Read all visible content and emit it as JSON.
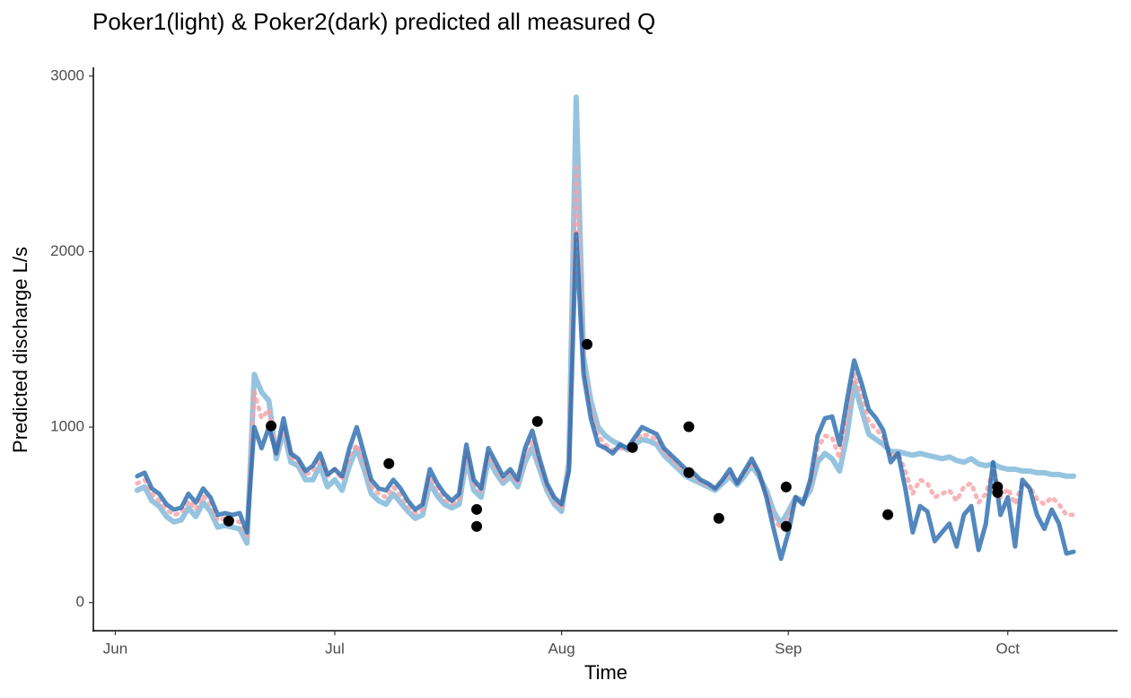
{
  "chart_data": {
    "type": "line",
    "title": "Poker1(light) & Poker2(dark) predicted all measured Q",
    "xlabel": "Time",
    "ylabel": "Predicted discharge L/s",
    "xlim": [
      -3,
      137
    ],
    "ylim": [
      -160,
      3050
    ],
    "xticks": [
      {
        "value": 0,
        "label": "Jun"
      },
      {
        "value": 30,
        "label": "Jul"
      },
      {
        "value": 61,
        "label": "Aug"
      },
      {
        "value": 92,
        "label": "Sep"
      },
      {
        "value": 122,
        "label": "Oct"
      }
    ],
    "yticks": [
      0,
      1000,
      2000,
      3000
    ],
    "grid": false,
    "x": [
      3,
      4,
      5,
      6,
      7,
      8,
      9,
      10,
      11,
      12,
      13,
      14,
      15,
      16,
      17,
      18,
      19,
      20,
      21,
      22,
      23,
      24,
      25,
      26,
      27,
      28,
      29,
      30,
      31,
      32,
      33,
      34,
      35,
      36,
      37,
      38,
      39,
      40,
      41,
      42,
      43,
      44,
      45,
      46,
      47,
      48,
      49,
      50,
      51,
      52,
      53,
      54,
      55,
      56,
      57,
      58,
      59,
      60,
      61,
      62,
      63,
      64,
      65,
      66,
      67,
      68,
      69,
      70,
      71,
      72,
      73,
      74,
      75,
      76,
      77,
      78,
      79,
      80,
      81,
      82,
      83,
      84,
      85,
      86,
      87,
      88,
      89,
      90,
      91,
      92,
      93,
      94,
      95,
      96,
      97,
      98,
      99,
      100,
      101,
      102,
      103,
      104,
      105,
      106,
      107,
      108,
      109,
      110,
      111,
      112,
      113,
      114,
      115,
      116,
      117,
      118,
      119,
      120,
      121,
      122,
      123,
      124,
      125,
      126,
      127,
      128,
      129,
      130,
      131
    ],
    "series": [
      {
        "color": "#8fc1de",
        "width": 6,
        "opacity": 0.95,
        "values": [
          640,
          660,
          580,
          550,
          490,
          460,
          470,
          540,
          490,
          570,
          520,
          430,
          440,
          430,
          420,
          340,
          1300,
          1200,
          1150,
          820,
          980,
          800,
          780,
          700,
          700,
          780,
          660,
          700,
          640,
          780,
          880,
          760,
          620,
          580,
          560,
          620,
          570,
          520,
          480,
          500,
          680,
          610,
          560,
          540,
          560,
          820,
          640,
          600,
          820,
          740,
          680,
          720,
          660,
          800,
          880,
          760,
          640,
          560,
          520,
          800,
          2880,
          1400,
          1150,
          1000,
          950,
          920,
          900,
          870,
          900,
          930,
          920,
          900,
          840,
          800,
          760,
          720,
          700,
          680,
          660,
          640,
          680,
          720,
          670,
          720,
          780,
          720,
          640,
          520,
          450,
          520,
          600,
          580,
          640,
          800,
          850,
          820,
          750,
          950,
          1250,
          1100,
          960,
          930,
          900,
          860,
          860,
          850,
          840,
          850,
          840,
          830,
          820,
          830,
          810,
          800,
          820,
          790,
          780,
          790,
          770,
          760,
          760,
          750,
          750,
          740,
          740,
          730,
          730,
          720,
          720
        ]
      },
      {
        "color": "#f4a3a6",
        "width": 5,
        "opacity": 0.8,
        "dash": true,
        "values": [
          680,
          700,
          620,
          580,
          530,
          500,
          510,
          580,
          530,
          610,
          560,
          470,
          480,
          470,
          460,
          380,
          1200,
          1050,
          1100,
          840,
          1000,
          830,
          800,
          730,
          750,
          820,
          720,
          760,
          700,
          830,
          900,
          800,
          660,
          620,
          600,
          660,
          610,
          550,
          510,
          530,
          720,
          650,
          590,
          560,
          590,
          860,
          680,
          630,
          850,
          770,
          700,
          740,
          680,
          840,
          930,
          790,
          660,
          580,
          540,
          780,
          2500,
          1350,
          1100,
          950,
          900,
          870,
          880,
          870,
          920,
          960,
          950,
          930,
          860,
          820,
          780,
          740,
          720,
          690,
          670,
          650,
          690,
          740,
          680,
          740,
          800,
          730,
          620,
          480,
          420,
          480,
          600,
          570,
          670,
          880,
          950,
          940,
          820,
          1050,
          1300,
          1180,
          1030,
          990,
          940,
          830,
          850,
          750,
          620,
          700,
          680,
          600,
          620,
          640,
          580,
          660,
          680,
          570,
          620,
          760,
          600,
          650,
          560,
          680,
          660,
          590,
          560,
          600,
          560,
          500,
          500
        ]
      },
      {
        "color": "#2166ac",
        "width": 5,
        "opacity": 0.78,
        "values": [
          720,
          740,
          650,
          620,
          560,
          530,
          540,
          620,
          570,
          650,
          600,
          500,
          510,
          500,
          510,
          400,
          1000,
          880,
          1000,
          850,
          1050,
          850,
          820,
          750,
          780,
          850,
          730,
          760,
          720,
          880,
          1000,
          850,
          700,
          650,
          640,
          700,
          650,
          580,
          530,
          560,
          760,
          680,
          620,
          580,
          620,
          900,
          700,
          650,
          880,
          800,
          720,
          760,
          700,
          880,
          980,
          820,
          680,
          600,
          560,
          750,
          2100,
          1300,
          1050,
          900,
          880,
          850,
          900,
          880,
          940,
          1000,
          980,
          960,
          880,
          840,
          800,
          760,
          740,
          700,
          680,
          650,
          700,
          760,
          680,
          750,
          820,
          740,
          600,
          420,
          250,
          400,
          600,
          560,
          700,
          950,
          1050,
          1060,
          900,
          1150,
          1380,
          1250,
          1100,
          1050,
          980,
          800,
          850,
          650,
          400,
          550,
          520,
          350,
          400,
          450,
          320,
          500,
          550,
          300,
          450,
          800,
          500,
          600,
          320,
          700,
          650,
          500,
          420,
          530,
          450,
          280,
          290
        ]
      },
      {
        "type": "scatter",
        "color": "#000000",
        "x": [
          15.5,
          21.3,
          37.4,
          49.4,
          49.4,
          57.7,
          64.5,
          70.7,
          78.4,
          78.4,
          82.5,
          91.7,
          91.7,
          105.6,
          120.6,
          120.6
        ],
        "values": [
          465,
          1007,
          792,
          531,
          434,
          1032,
          1472,
          884,
          1002,
          741,
          480,
          659,
          434,
          501,
          659,
          628
        ]
      }
    ]
  }
}
